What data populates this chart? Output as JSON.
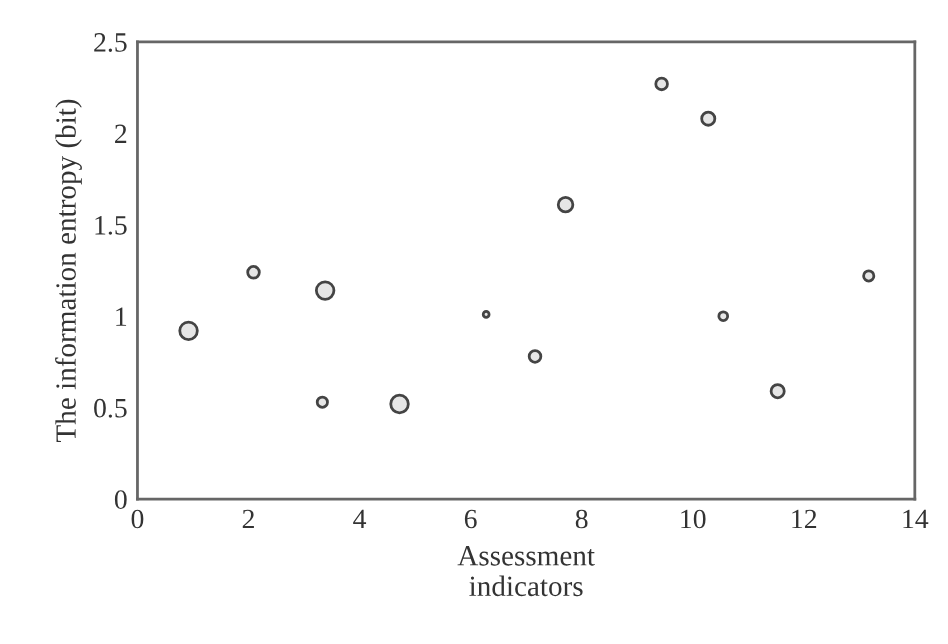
{
  "chart_data": {
    "type": "bubble",
    "xlabel": "Assessment\nindicators",
    "ylabel": "The information entropy (bit)",
    "x": [
      0.92,
      2.09,
      3.38,
      3.33,
      4.72,
      6.28,
      7.16,
      7.71,
      9.44,
      10.28,
      10.55,
      11.53,
      13.17
    ],
    "series": [
      {
        "color": "#e6e6e6",
        "values": [
          0.92,
          1.24,
          1.14,
          0.53,
          0.52,
          1.01,
          0.78,
          1.61,
          2.27,
          2.08,
          1.0,
          0.59,
          1.22
        ],
        "sizes": [
          1,
          0.44,
          1,
          0.34,
          1,
          0.11,
          0.44,
          0.69,
          0.44,
          0.56,
          0.25,
          0.56,
          0.34
        ]
      }
    ],
    "xlim": [
      0,
      14
    ],
    "xticks": [
      0,
      2,
      4,
      6,
      8,
      10,
      12,
      14
    ],
    "ylim": [
      0,
      2.5
    ],
    "yticks": [
      0,
      0.5,
      1,
      1.5,
      2,
      2.5
    ],
    "grid": false,
    "legend": false
  }
}
